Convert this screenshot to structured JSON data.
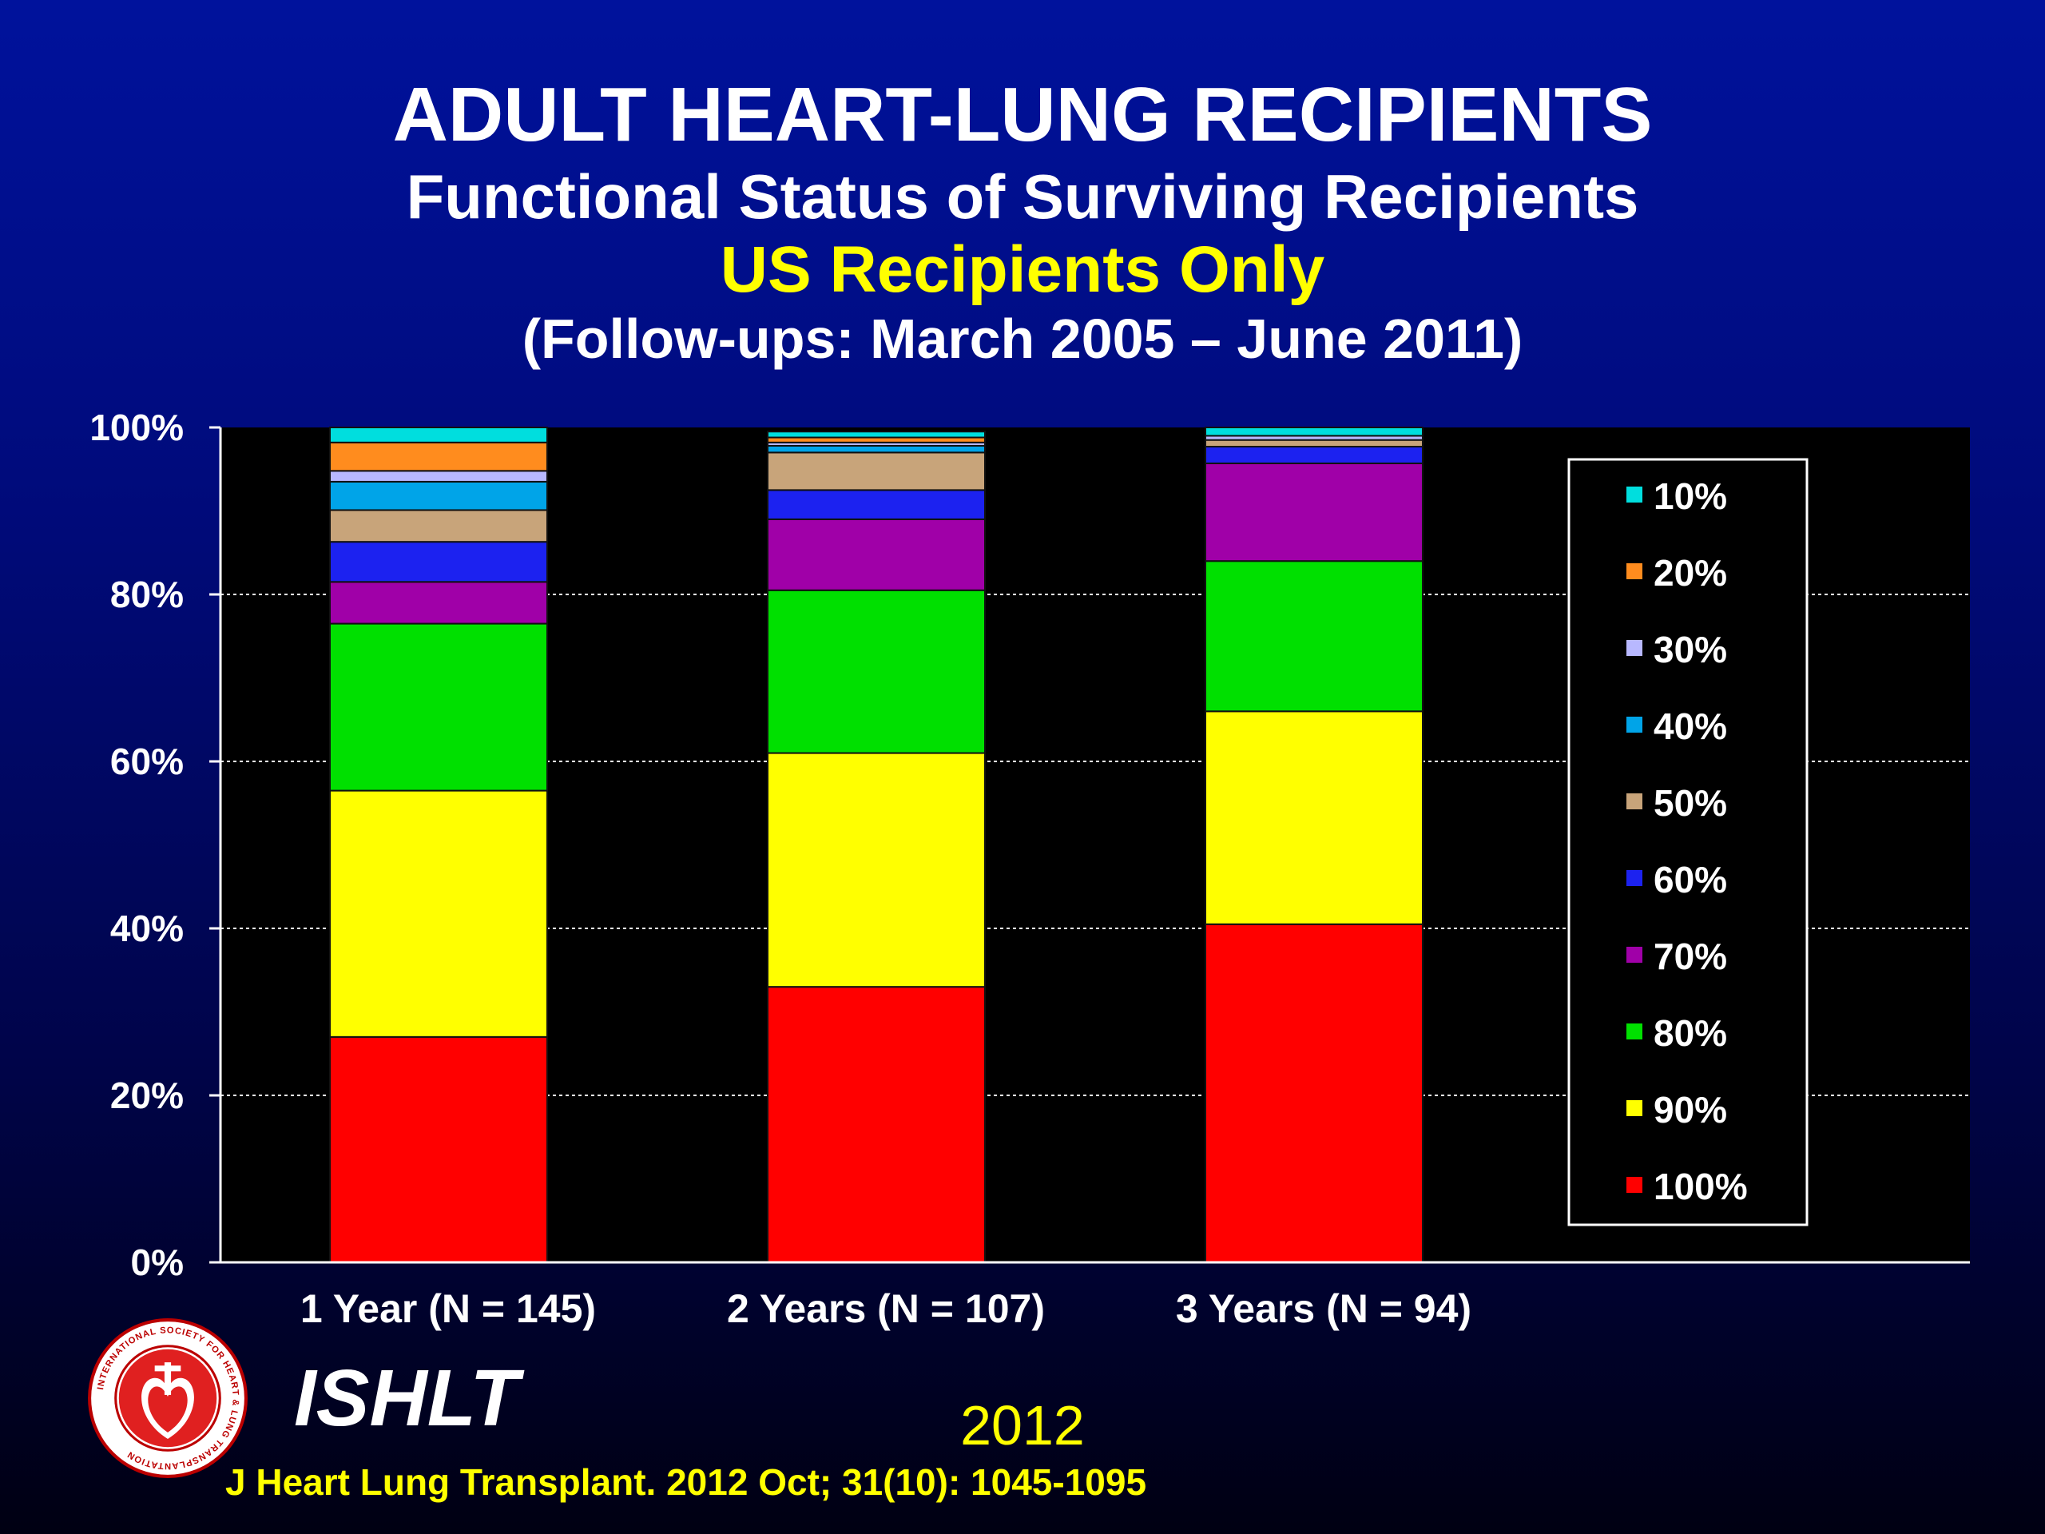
{
  "header": {
    "title": "ADULT HEART-LUNG RECIPIENTS",
    "subtitle": "Functional Status of Surviving Recipients",
    "region": "US Recipients Only",
    "period": "(Follow-ups: March 2005 – June 2011)"
  },
  "chart_data": {
    "type": "bar",
    "stacked": true,
    "normalized_percent": true,
    "categories": [
      "1 Year  (N = 145)",
      "2 Years  (N = 107)",
      "3 Years  (N = 94)"
    ],
    "ylim": [
      0,
      100
    ],
    "yticks": [
      "0%",
      "20%",
      "40%",
      "60%",
      "80%",
      "100%"
    ],
    "grid": true,
    "legend_position": "right",
    "series": [
      {
        "name": "100%",
        "color": "#ff0000",
        "values": [
          27,
          33,
          40.5
        ]
      },
      {
        "name": "90%",
        "color": "#ffff00",
        "values": [
          29.5,
          28,
          25.5
        ]
      },
      {
        "name": "80%",
        "color": "#00e000",
        "values": [
          20,
          19.5,
          18
        ]
      },
      {
        "name": "70%",
        "color": "#a000a8",
        "values": [
          5,
          8.5,
          11.7
        ]
      },
      {
        "name": "60%",
        "color": "#1c22f0",
        "values": [
          4.8,
          3.5,
          2
        ]
      },
      {
        "name": "50%",
        "color": "#c8a47a",
        "values": [
          3.8,
          4.5,
          0.8
        ]
      },
      {
        "name": "40%",
        "color": "#00a4e8",
        "values": [
          3.4,
          0.8,
          0
        ]
      },
      {
        "name": "30%",
        "color": "#b8b8ff",
        "values": [
          1.3,
          0.4,
          0.5
        ]
      },
      {
        "name": "20%",
        "color": "#ff8c1e",
        "values": [
          3.4,
          0.6,
          0
        ]
      },
      {
        "name": "10%",
        "color": "#00dede",
        "values": [
          1.8,
          0.7,
          1
        ]
      }
    ]
  },
  "footer": {
    "org": "ISHLT",
    "logo_text": "INTERNATIONAL SOCIETY FOR HEART & LUNG TRANSPLANTATION",
    "year": "2012",
    "citation": "J Heart Lung Transplant.  2012 Oct; 31(10): 1045-1095"
  }
}
